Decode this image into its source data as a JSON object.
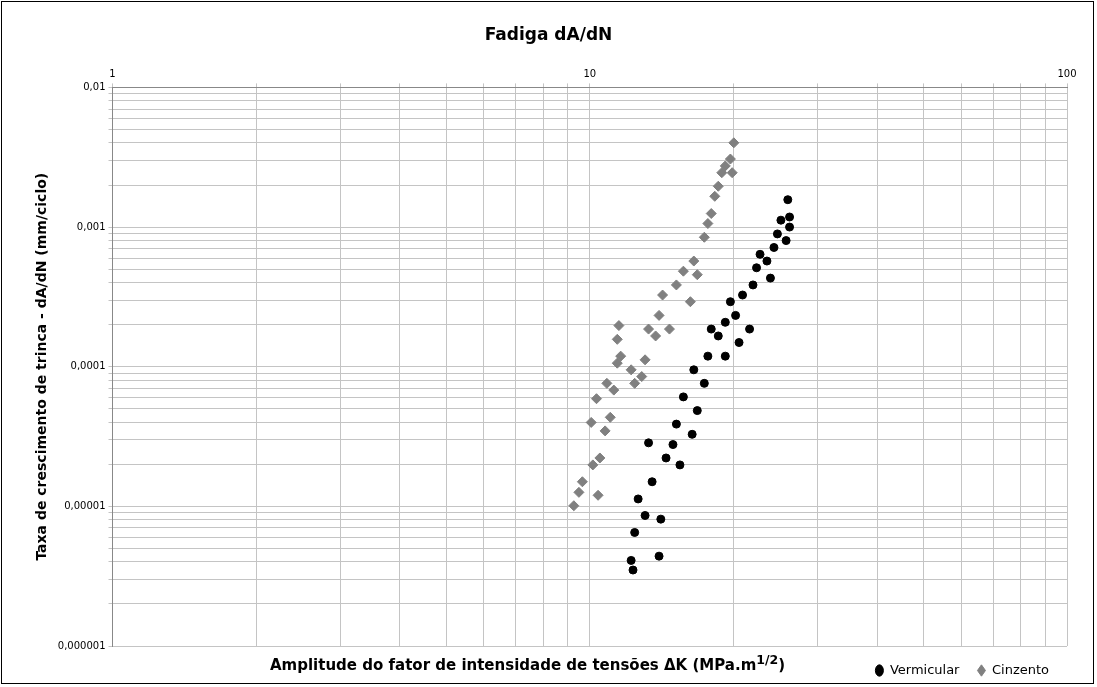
{
  "chart_data": {
    "type": "scatter",
    "title": "Fadiga dA/dN",
    "xlabel": "Amplitude do fator de intensidade de tensões ΔK (MPa.m$^{1/2}$)",
    "ylabel": "Taxa de crescimento de trinca - dA/dN (mm/ciclo)",
    "log": "xy",
    "grid": true,
    "legend": "bottom right",
    "xlim": [
      1,
      100
    ],
    "ylim": [
      1e-06,
      0.01
    ],
    "xticks": [
      1,
      {
        "value": 2,
        "label": null
      },
      {
        "value": 3,
        "label": null
      },
      {
        "value": 4,
        "label": null
      },
      {
        "value": 5,
        "label": null
      },
      {
        "value": 6,
        "label": null
      },
      {
        "value": 7,
        "label": null
      },
      {
        "value": 8,
        "label": null
      },
      {
        "value": 9,
        "label": null
      },
      10,
      {
        "value": 20,
        "label": null
      },
      {
        "value": 30,
        "label": null
      },
      {
        "value": 40,
        "label": null
      },
      {
        "value": 50,
        "label": null
      },
      {
        "value": 60,
        "label": null
      },
      {
        "value": 70,
        "label": null
      },
      {
        "value": 80,
        "label": null
      },
      {
        "value": 90,
        "label": null
      },
      100
    ],
    "yticks": [
      {
        "value": 1e-06,
        "label": "0,000001"
      },
      {
        "value": 2e-06,
        "label": null
      },
      {
        "value": 3e-06,
        "label": null
      },
      {
        "value": 4e-06,
        "label": null
      },
      {
        "value": 5e-06,
        "label": null
      },
      {
        "value": 6e-06,
        "label": null
      },
      {
        "value": 7e-06,
        "label": null
      },
      {
        "value": 8e-06,
        "label": null
      },
      {
        "value": 9e-06,
        "label": null
      },
      {
        "value": 1e-05,
        "label": "0,00001"
      },
      {
        "value": 2e-05,
        "label": null
      },
      {
        "value": 3e-05,
        "label": null
      },
      {
        "value": 4e-05,
        "label": null
      },
      {
        "value": 5e-05,
        "label": null
      },
      {
        "value": 6e-05,
        "label": null
      },
      {
        "value": 7e-05,
        "label": null
      },
      {
        "value": 8e-05,
        "label": null
      },
      {
        "value": 9e-05,
        "label": null
      },
      {
        "value": 0.0001,
        "label": "0,0001"
      },
      {
        "value": 0.0002,
        "label": null
      },
      {
        "value": 0.0003,
        "label": null
      },
      {
        "value": 0.0004,
        "label": null
      },
      {
        "value": 0.0005,
        "label": null
      },
      {
        "value": 0.0006,
        "label": null
      },
      {
        "value": 0.0007,
        "label": null
      },
      {
        "value": 0.0008,
        "label": null
      },
      {
        "value": 0.0009,
        "label": null
      },
      {
        "value": 0.001,
        "label": "0,001"
      },
      {
        "value": 0.002,
        "label": null
      },
      {
        "value": 0.003,
        "label": null
      },
      {
        "value": 0.004,
        "label": null
      },
      {
        "value": 0.005,
        "label": null
      },
      {
        "value": 0.006,
        "label": null
      },
      {
        "value": 0.007,
        "label": null
      },
      {
        "value": 0.008,
        "label": null
      },
      {
        "value": 0.009,
        "label": null
      },
      {
        "value": 0.01,
        "label": "0,01"
      }
    ],
    "series": [
      {
        "name": "Vermicular",
        "color": "#000000",
        "marker": "circle",
        "x": [
          12.32,
          12.21,
          13.97,
          12.42,
          13.28,
          13.51,
          14.09,
          13.06,
          14.45,
          14.94,
          15.19,
          15.71,
          16.39,
          16.8,
          16.52,
          17.38,
          17.68,
          17.97,
          18.59,
          19.23,
          19.71,
          20.21,
          20.9,
          21.62,
          21.98,
          22.36,
          22.74,
          23.51,
          24.32,
          24.73,
          25.15,
          26.0,
          26.22,
          26.22,
          25.79,
          23.91,
          20.55,
          15.45,
          12.63,
          19.23
        ],
        "values": [
          3.5e-06,
          4.1e-06,
          4.4e-06,
          6.5e-06,
          2.85e-05,
          1.5e-05,
          8.1e-06,
          8.6e-06,
          2.22e-05,
          2.77e-05,
          3.88e-05,
          6.08e-05,
          3.28e-05,
          4.85e-05,
          9.5e-05,
          7.6e-05,
          0.000119,
          0.000186,
          0.000166,
          0.000208,
          0.000292,
          0.000233,
          0.000326,
          0.000186,
          0.000385,
          0.000511,
          0.000638,
          0.000571,
          0.000714,
          0.000893,
          0.00112,
          0.00157,
          0.001,
          0.00118,
          0.0008,
          0.000431,
          0.000149,
          1.98e-05,
          1.13e-05,
          0.000119
        ]
      },
      {
        "name": "Cinzento",
        "color": "#808080",
        "marker": "diamond",
        "x": [
          9.26,
          9.49,
          9.65,
          10.07,
          10.33,
          10.5,
          10.77,
          11.04,
          11.23,
          11.42,
          11.61,
          11.51,
          11.42,
          12.21,
          12.42,
          12.85,
          13.06,
          13.28,
          13.74,
          13.97,
          14.21,
          14.69,
          15.19,
          15.71,
          16.25,
          16.52,
          16.8,
          17.38,
          17.68,
          17.97,
          18.28,
          18.59,
          18.91,
          19.23,
          19.71,
          20.04,
          19.88,
          10.41,
          10.15,
          10.86
        ],
        "values": [
          1.01e-05,
          1.26e-05,
          1.5e-05,
          3.99e-05,
          5.9e-05,
          2.22e-05,
          3.47e-05,
          4.34e-05,
          6.8e-05,
          0.000106,
          0.000119,
          0.000197,
          0.000157,
          9.5e-05,
          7.6e-05,
          8.5e-05,
          0.000112,
          0.000186,
          0.000166,
          0.000233,
          0.000326,
          0.000186,
          0.000385,
          0.000483,
          0.000292,
          0.000571,
          0.000456,
          0.000845,
          0.00106,
          0.00125,
          0.00166,
          0.00196,
          0.00245,
          0.00274,
          0.00307,
          0.00401,
          0.00245,
          1.2e-05,
          1.98e-05,
          7.6e-05
        ]
      }
    ]
  }
}
